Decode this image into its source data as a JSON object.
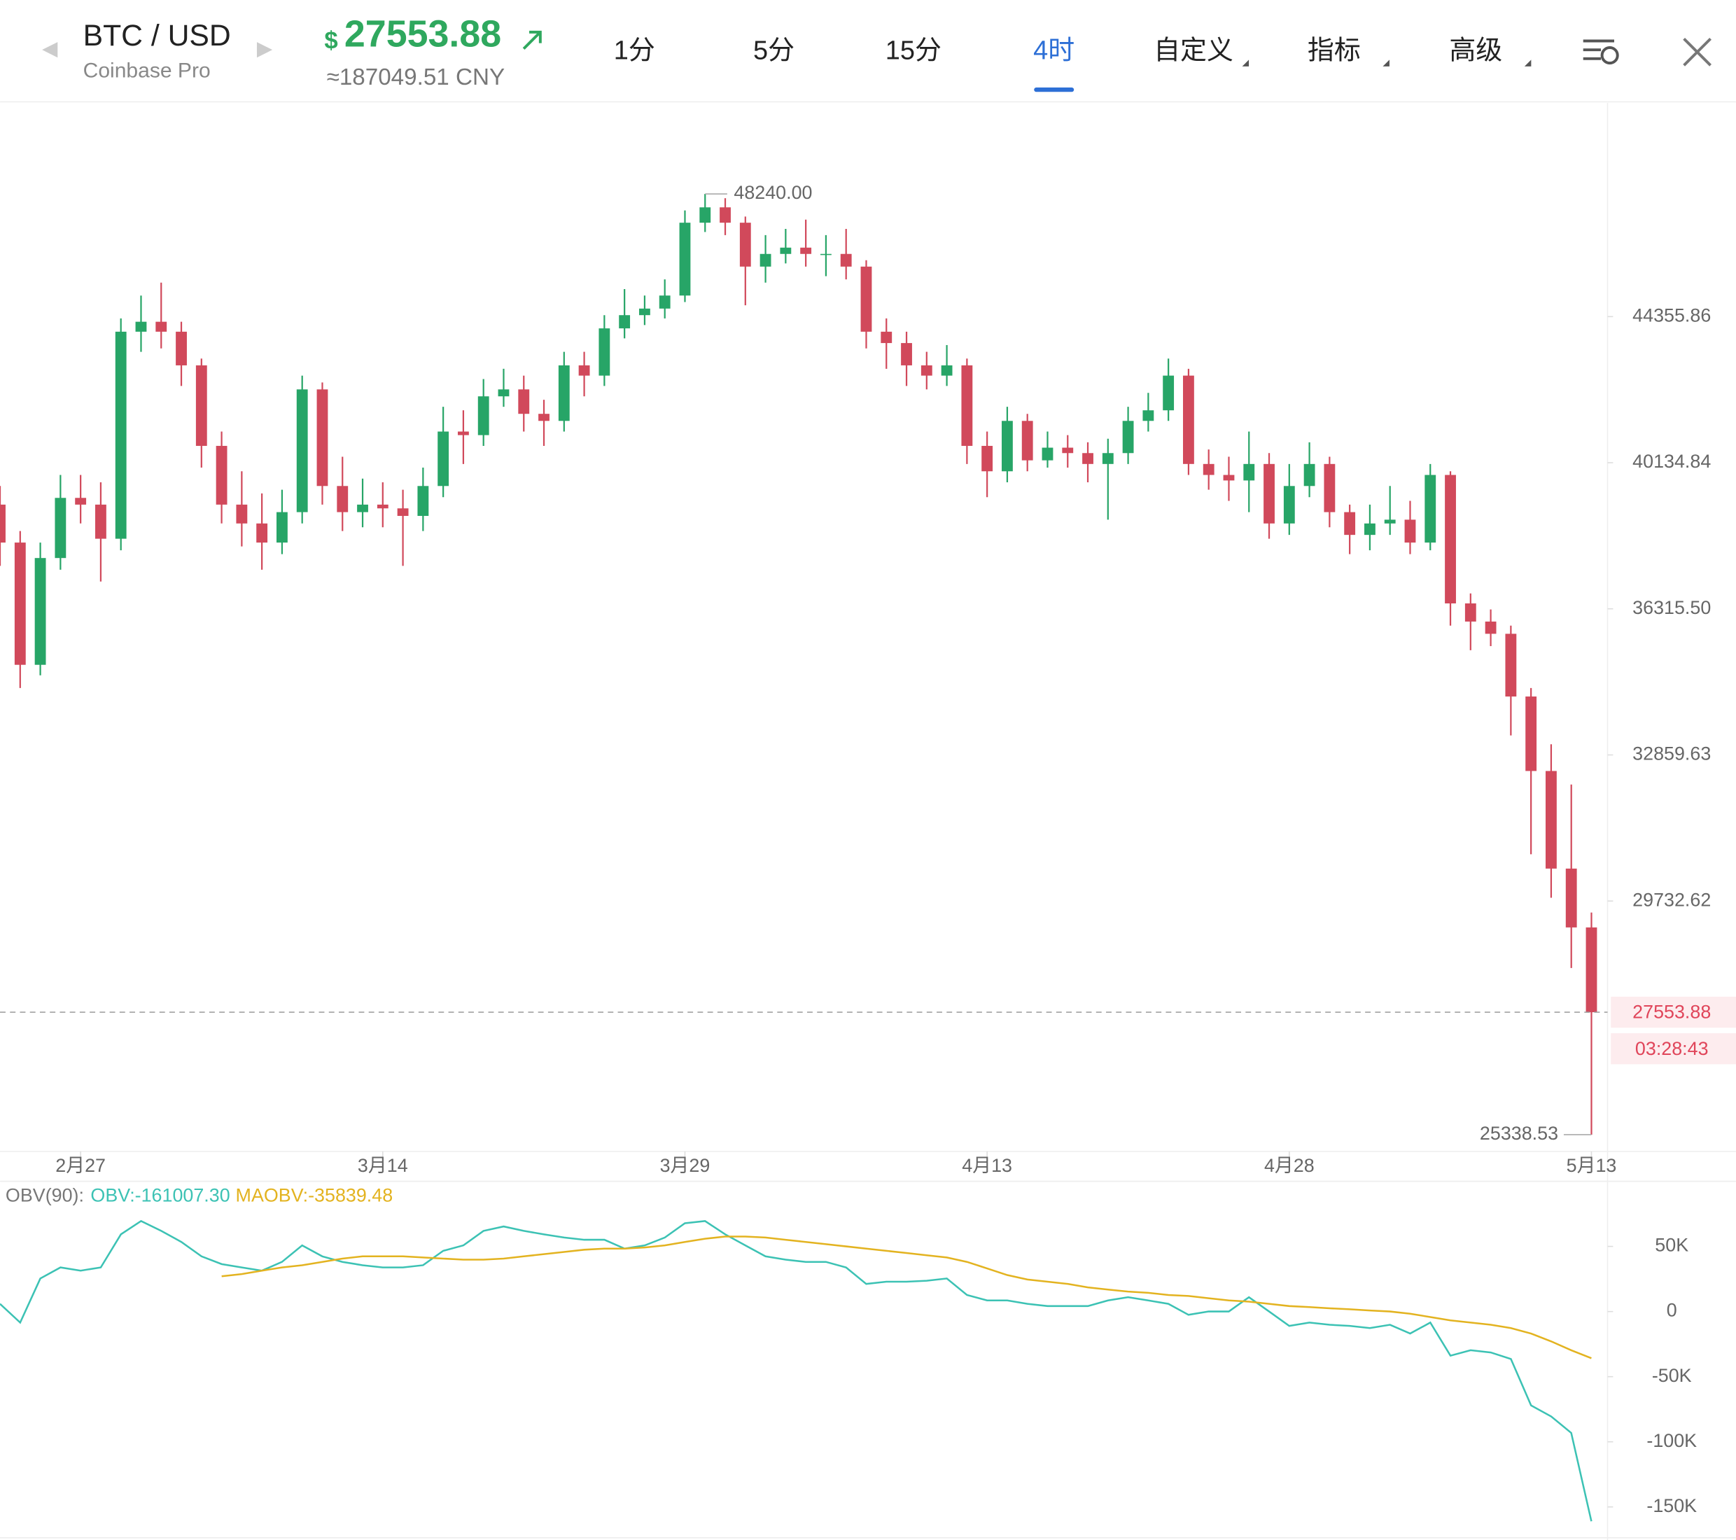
{
  "header": {
    "symbol": "BTC / USD",
    "exchange": "Coinbase Pro",
    "currency_sign": "$",
    "price": "27553.88",
    "converted": "≈187049.51 CNY",
    "tabs": [
      "1分",
      "5分",
      "15分",
      "4时",
      "自定义",
      "指标",
      "高级"
    ],
    "active_tab": "4时"
  },
  "chart_data": [
    {
      "type": "candlestick",
      "log_scale": true,
      "grid": false,
      "up_color": "#27a567",
      "down_color": "#d1495b",
      "x": [
        -4,
        -3,
        -2,
        -1,
        0,
        1,
        2,
        3,
        4,
        5,
        6,
        7,
        8,
        9,
        10,
        11,
        12,
        13,
        14,
        15,
        16,
        17,
        18,
        19,
        20,
        21,
        22,
        23,
        24,
        25,
        26,
        27,
        28,
        29,
        30,
        31,
        32,
        33,
        34,
        35,
        36,
        37,
        38,
        39,
        40,
        41,
        42,
        43,
        44,
        45,
        46,
        47,
        48,
        49,
        50,
        51,
        52,
        53,
        54,
        55,
        56,
        57,
        58,
        59,
        60,
        61,
        62,
        63,
        64,
        65,
        66,
        67,
        68,
        69,
        70,
        71,
        72,
        73,
        74,
        75
      ],
      "open": [
        39000,
        38000,
        34950,
        37600,
        39180,
        39000,
        38100,
        43900,
        44200,
        43900,
        42900,
        40600,
        39000,
        38500,
        38000,
        38800,
        42200,
        39500,
        38800,
        39000,
        38900,
        38700,
        39500,
        41000,
        40900,
        42000,
        42200,
        41500,
        41300,
        42900,
        42600,
        44000,
        44400,
        44600,
        45000,
        47300,
        47800,
        47300,
        45900,
        46300,
        46500,
        46300,
        46300,
        45900,
        43900,
        43560,
        42900,
        42600,
        42900,
        40600,
        39900,
        41300,
        40200,
        40550,
        40400,
        40100,
        40400,
        41300,
        41600,
        42600,
        40100,
        39800,
        39650,
        40100,
        38500,
        39500,
        40100,
        38800,
        38200,
        38500,
        38600,
        38000,
        39800,
        36450,
        36000,
        35700,
        34200,
        32500,
        30400,
        29200
      ],
      "high": [
        39500,
        38300,
        38000,
        39800,
        39800,
        39600,
        44300,
        45000,
        45400,
        44200,
        43100,
        41000,
        39900,
        39300,
        39400,
        42600,
        42400,
        40300,
        39700,
        39600,
        39400,
        40000,
        41700,
        41600,
        42500,
        42800,
        42600,
        41900,
        43300,
        43300,
        44400,
        45200,
        45000,
        45500,
        47700,
        48240,
        48100,
        47500,
        46900,
        47100,
        47400,
        46900,
        47100,
        46100,
        44300,
        43900,
        43300,
        43500,
        43100,
        41000,
        41700,
        41500,
        41000,
        40900,
        40700,
        40800,
        41700,
        42100,
        43100,
        42800,
        40500,
        40300,
        41000,
        40400,
        40100,
        40700,
        40300,
        39000,
        39000,
        39500,
        39100,
        40100,
        39900,
        36700,
        36300,
        35900,
        34400,
        33100,
        32200,
        29500
      ],
      "low": [
        37400,
        34400,
        34700,
        37300,
        38500,
        37000,
        37800,
        43300,
        43400,
        42300,
        40000,
        38500,
        37900,
        37300,
        37700,
        38500,
        39000,
        38300,
        38400,
        38400,
        37400,
        38300,
        39200,
        40100,
        40600,
        41700,
        41000,
        40600,
        41000,
        42000,
        42300,
        43700,
        44100,
        44300,
        44800,
        47000,
        46900,
        44700,
        45400,
        46000,
        45900,
        45600,
        45500,
        43400,
        42800,
        42300,
        42200,
        42300,
        40100,
        39200,
        39600,
        39900,
        40000,
        40000,
        39600,
        38600,
        40100,
        41000,
        41300,
        39800,
        39400,
        39100,
        38800,
        38100,
        38200,
        39200,
        38400,
        37700,
        37800,
        38200,
        37700,
        37800,
        35900,
        35300,
        35400,
        33300,
        30700,
        29800,
        28400,
        25338.53
      ],
      "close": [
        38000,
        34950,
        37600,
        39180,
        39000,
        38100,
        43900,
        44200,
        43900,
        42900,
        40600,
        39000,
        38500,
        38000,
        38800,
        42200,
        39500,
        38800,
        39000,
        38900,
        38700,
        39500,
        41000,
        40900,
        42000,
        42200,
        41500,
        41300,
        42900,
        42600,
        44000,
        44400,
        44600,
        45000,
        47300,
        47800,
        47300,
        45900,
        46300,
        46500,
        46300,
        46300,
        45900,
        43900,
        43560,
        42900,
        42600,
        42900,
        40600,
        39900,
        41300,
        40200,
        40550,
        40400,
        40100,
        40400,
        41300,
        41600,
        42600,
        40100,
        39800,
        39650,
        40100,
        38500,
        39500,
        40100,
        38800,
        38200,
        38500,
        38600,
        38000,
        39800,
        36450,
        36000,
        35700,
        34200,
        32500,
        30400,
        29200,
        27553.88
      ],
      "xlim": [
        -4,
        75.8
      ],
      "xticks": [
        {
          "value": 0,
          "label": "2月27"
        },
        {
          "value": 15,
          "label": "3月14"
        },
        {
          "value": 30,
          "label": "3月29"
        },
        {
          "value": 45,
          "label": "4月13"
        },
        {
          "value": 60,
          "label": "4月28"
        },
        {
          "value": 75,
          "label": "5月13"
        }
      ],
      "ylim": [
        25050,
        51340
      ],
      "yticks": [
        44355.86,
        40134.84,
        {
          "value": 36315.5,
          "label": "36315.50"
        },
        32859.63,
        29732.62
      ],
      "current_price": {
        "value": 27553.88,
        "label": "27553.88",
        "countdown": "03:28:43",
        "color": "#e0455a"
      },
      "annotations": [
        {
          "x": 31,
          "value": 48240,
          "label": "48240.00"
        },
        {
          "x": 75,
          "value": 25338.53,
          "label": "25338.53"
        }
      ]
    },
    {
      "type": "line",
      "title": "OBV(90):",
      "x": [
        -4,
        -3,
        -2,
        -1,
        0,
        1,
        2,
        3,
        4,
        5,
        6,
        7,
        8,
        9,
        10,
        11,
        12,
        13,
        14,
        15,
        16,
        17,
        18,
        19,
        20,
        21,
        22,
        23,
        24,
        25,
        26,
        27,
        28,
        29,
        30,
        31,
        32,
        33,
        34,
        35,
        36,
        37,
        38,
        39,
        40,
        41,
        42,
        43,
        44,
        45,
        46,
        47,
        48,
        49,
        50,
        51,
        52,
        53,
        54,
        55,
        56,
        57,
        58,
        59,
        60,
        61,
        62,
        63,
        64,
        65,
        66,
        67,
        68,
        69,
        70,
        71,
        72,
        73,
        74,
        75
      ],
      "series": [
        {
          "name": "OBV:-161007.30",
          "color": "#3cc2b4",
          "values": [
            5900,
            -8500,
            25400,
            33900,
            31400,
            33900,
            59300,
            69500,
            61900,
            53400,
            42400,
            36400,
            33900,
            31400,
            38100,
            50800,
            42400,
            38100,
            35600,
            33900,
            33900,
            35600,
            46600,
            50800,
            61900,
            65300,
            61900,
            59300,
            56800,
            55100,
            55100,
            48300,
            50800,
            56800,
            67800,
            69500,
            59300,
            50800,
            42400,
            39800,
            38100,
            38100,
            33900,
            21200,
            22900,
            22900,
            23700,
            25400,
            12700,
            8500,
            8500,
            5900,
            4200,
            4200,
            4200,
            8500,
            11000,
            8500,
            5900,
            -2500,
            0,
            0,
            11000,
            0,
            -11000,
            -8500,
            -10200,
            -11000,
            -12700,
            -10200,
            -16900,
            -8500,
            -33900,
            -29700,
            -31400,
            -36400,
            -72000,
            -80500,
            -93200,
            -161007.3
          ]
        },
        {
          "name": "MAOBV:-35839.48",
          "color": "#e3b320",
          "values": [
            null,
            null,
            null,
            null,
            null,
            null,
            null,
            null,
            null,
            null,
            null,
            27100,
            28800,
            31400,
            33900,
            35600,
            38100,
            40700,
            42400,
            42400,
            42400,
            41500,
            40700,
            39800,
            39800,
            40700,
            42400,
            44100,
            45800,
            47500,
            48300,
            48300,
            49200,
            50800,
            53400,
            55900,
            57600,
            57600,
            56800,
            55100,
            53400,
            51700,
            50000,
            48300,
            46600,
            44900,
            43200,
            41500,
            38100,
            33100,
            28000,
            24600,
            22900,
            21200,
            18600,
            16900,
            15300,
            14400,
            12700,
            11900,
            10200,
            8500,
            7600,
            5900,
            4200,
            3400,
            2500,
            1700,
            800,
            0,
            -1700,
            -4200,
            -6800,
            -8500,
            -10200,
            -12700,
            -16900,
            -22900,
            -29700,
            -35839.48
          ]
        }
      ],
      "ylim": [
        -173700,
        99150
      ],
      "yticks": [
        {
          "value": 50000,
          "label": "50K"
        },
        0,
        {
          "value": -50000,
          "label": "-50K"
        },
        {
          "value": -100000,
          "label": "-100K"
        },
        {
          "value": -150000,
          "label": "-150K"
        }
      ]
    }
  ]
}
